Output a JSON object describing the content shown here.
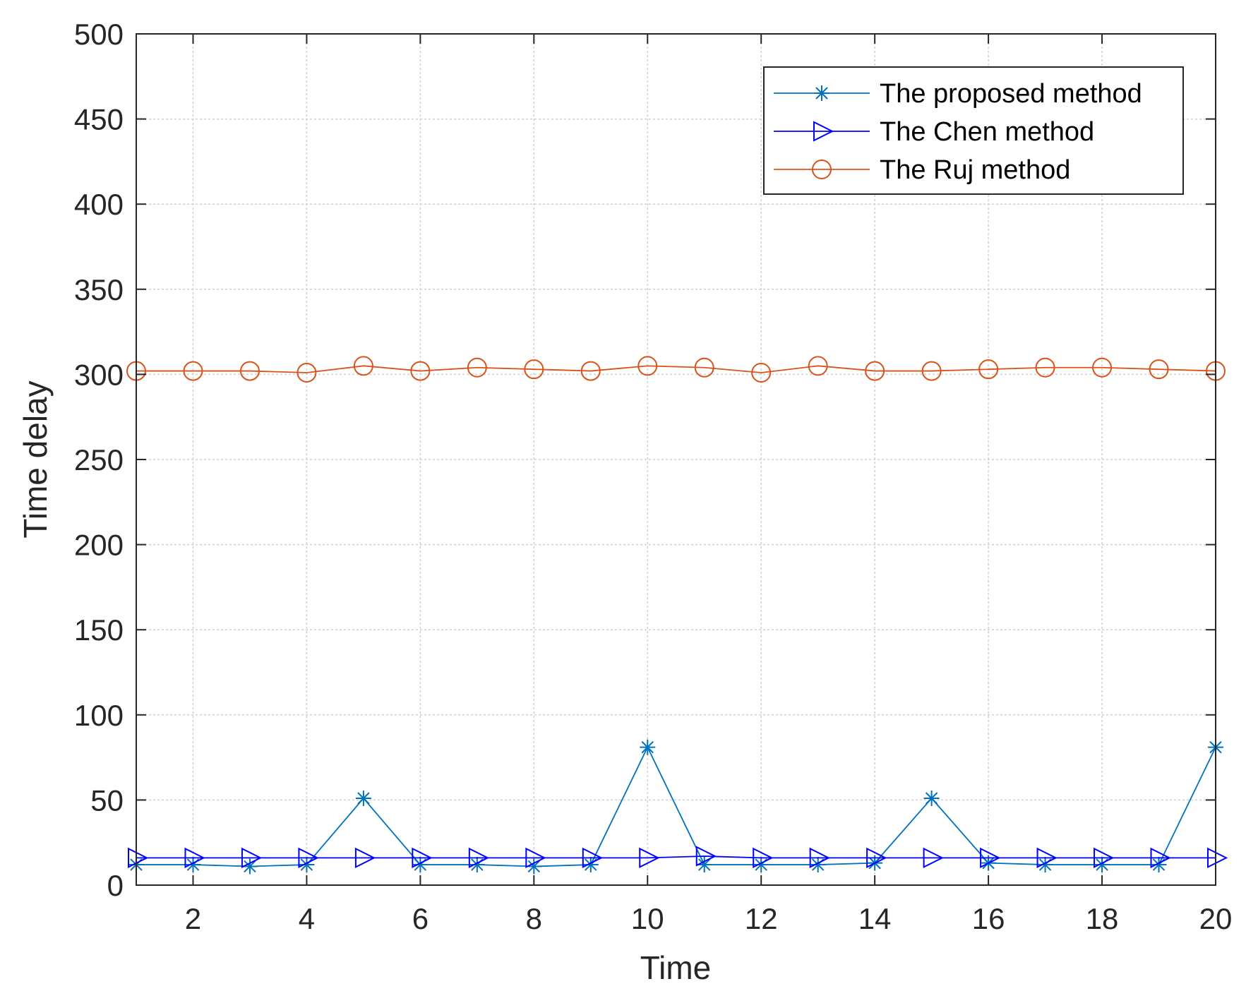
{
  "chart_data": {
    "type": "line",
    "title": "",
    "xlabel": "Time",
    "ylabel": "Time delay",
    "xlim": [
      1,
      20
    ],
    "ylim": [
      0,
      500
    ],
    "xticks": [
      2,
      4,
      6,
      8,
      10,
      12,
      14,
      16,
      18,
      20
    ],
    "yticks": [
      0,
      50,
      100,
      150,
      200,
      250,
      300,
      350,
      400,
      450,
      500
    ],
    "grid": true,
    "legend_position": "top-right",
    "x": [
      1,
      2,
      3,
      4,
      5,
      6,
      7,
      8,
      9,
      10,
      11,
      12,
      13,
      14,
      15,
      16,
      17,
      18,
      19,
      20
    ],
    "series": [
      {
        "name": "The proposed method",
        "color": "#0072BD",
        "marker": "asterisk",
        "values": [
          12,
          12,
          11,
          12,
          51,
          12,
          12,
          11,
          12,
          81,
          12,
          12,
          12,
          13,
          51,
          13,
          12,
          12,
          12,
          81
        ]
      },
      {
        "name": "The Chen method",
        "color": "#0000FF",
        "marker": "triangle-right",
        "values": [
          16,
          16,
          16,
          16,
          16,
          16,
          16,
          16,
          16,
          16,
          17,
          16,
          16,
          16,
          16,
          16,
          16,
          16,
          16,
          16
        ]
      },
      {
        "name": "The Ruj method",
        "color": "#D95319",
        "marker": "circle",
        "values": [
          302,
          302,
          302,
          301,
          305,
          302,
          304,
          303,
          302,
          305,
          304,
          301,
          305,
          302,
          302,
          303,
          304,
          304,
          303,
          302
        ]
      }
    ]
  }
}
